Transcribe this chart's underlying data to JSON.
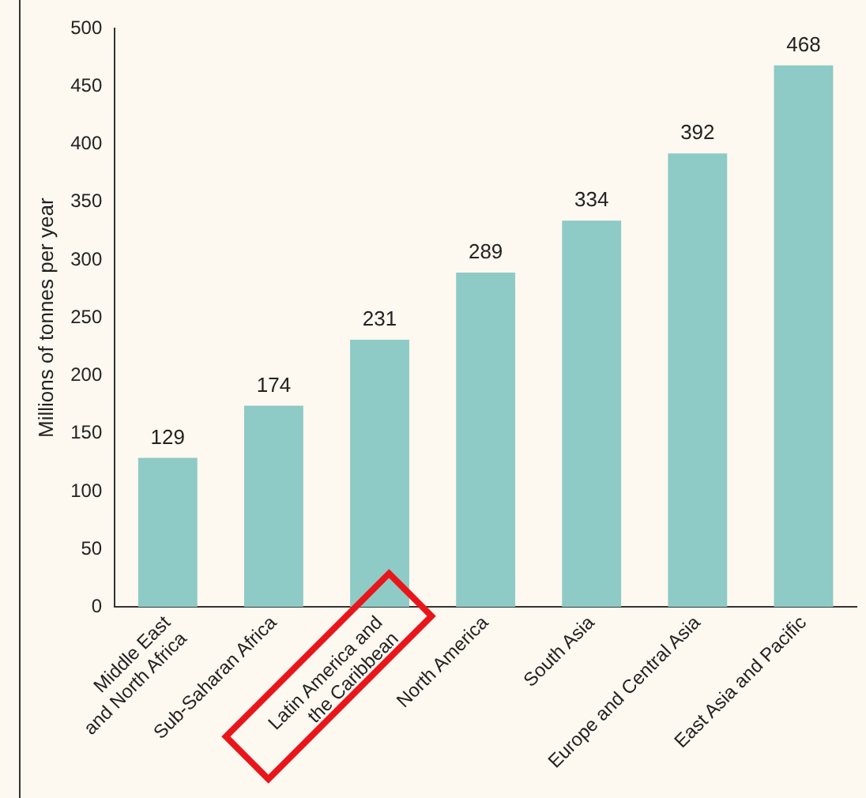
{
  "chart_data": {
    "type": "bar",
    "ylabel": "Millions of tonnes per year",
    "categories": [
      "Middle East\nand North Africa",
      "Sub-Saharan Africa",
      "Latin America and\nthe Caribbean",
      "North America",
      "South Asia",
      "Europe and Central Asia",
      "East Asia and Pacific"
    ],
    "values": [
      129,
      174,
      231,
      289,
      334,
      392,
      468
    ],
    "color": "#8ecac6",
    "ylim": [
      0,
      500
    ],
    "yticks": [
      0,
      50,
      100,
      150,
      200,
      250,
      300,
      350,
      400,
      450,
      500
    ],
    "data_labels": true,
    "grid": false,
    "legend": false
  }
}
